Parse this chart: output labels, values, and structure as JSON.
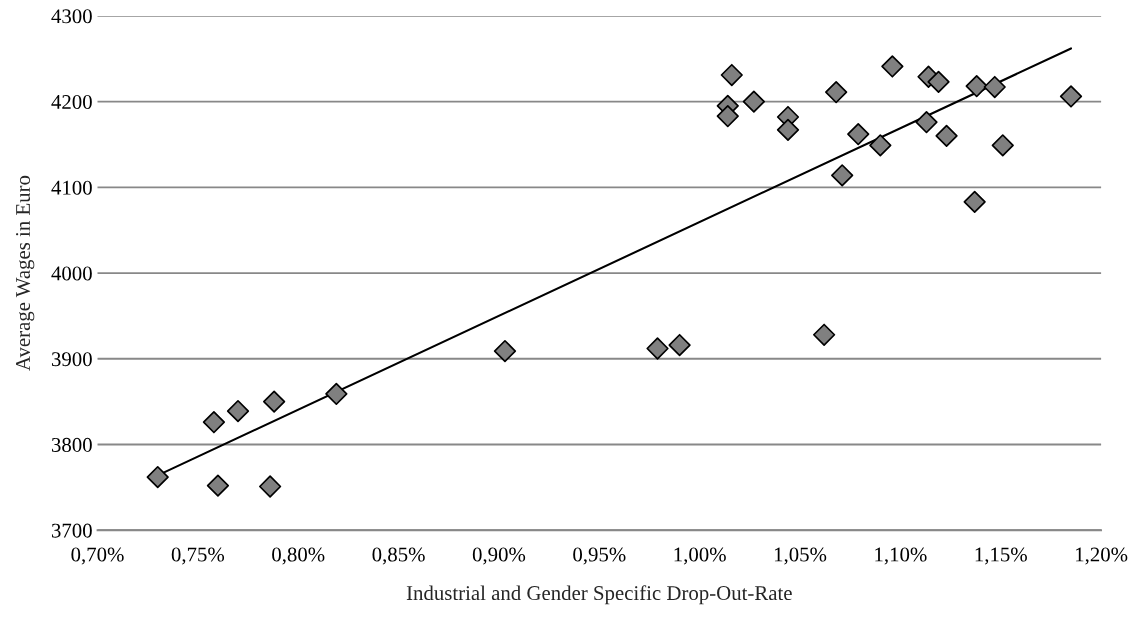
{
  "chart_data": {
    "type": "scatter",
    "xlabel": "Industrial and Gender Specific Drop-Out-Rate",
    "ylabel": "Average Wages in Euro",
    "series": [
      {
        "color": "#808080",
        "marker": "diamond",
        "x": [
          0.73,
          0.758,
          0.76,
          0.77,
          0.786,
          0.788,
          0.819,
          0.903,
          0.979,
          0.99,
          1.014,
          1.014,
          1.016,
          1.027,
          1.044,
          1.044,
          1.062,
          1.068,
          1.071,
          1.079,
          1.09,
          1.096,
          1.113,
          1.114,
          1.119,
          1.123,
          1.137,
          1.138,
          1.147,
          1.151,
          1.185
        ],
        "values": [
          3762,
          3826,
          3752,
          3839,
          3751,
          3850,
          3859,
          3909,
          3912,
          3916,
          4195,
          4183,
          4231,
          4200,
          4182,
          4167,
          3928,
          4211,
          4114,
          4162,
          4149,
          4241,
          4176,
          4229,
          4223,
          4160,
          4083,
          4218,
          4217,
          4149,
          4206
        ]
      },
      {
        "type": "line",
        "color": "#000000",
        "marker": "none",
        "x": [
          0.73,
          1.185
        ],
        "values": [
          3764,
          4262
        ]
      }
    ],
    "xlim": [
      0.7,
      1.2
    ],
    "xticks": [
      {
        "value": 0.7,
        "label": "0,70%"
      },
      {
        "value": 0.75,
        "label": "0,75%"
      },
      {
        "value": 0.8,
        "label": "0,80%"
      },
      {
        "value": 0.85,
        "label": "0,85%"
      },
      {
        "value": 0.9,
        "label": "0,90%"
      },
      {
        "value": 0.95,
        "label": "0,95%"
      },
      {
        "value": 1.0,
        "label": "1,00%"
      },
      {
        "value": 1.05,
        "label": "1,05%"
      },
      {
        "value": 1.1,
        "label": "1,10%"
      },
      {
        "value": 1.15,
        "label": "1,15%"
      },
      {
        "value": 1.2,
        "label": "1,20%"
      }
    ],
    "ylim": [
      3700,
      4300
    ],
    "yticks": [
      3700,
      3800,
      3900,
      4000,
      4100,
      4200,
      4300
    ],
    "grid": "y"
  }
}
